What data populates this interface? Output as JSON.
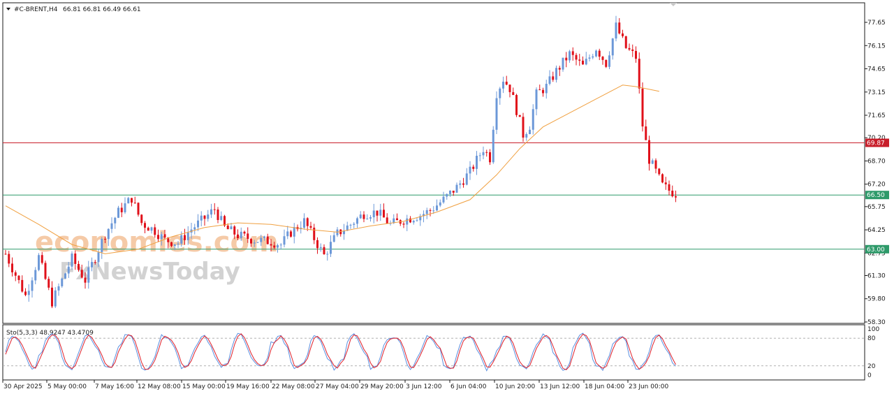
{
  "header": {
    "menu_icon": "triangle-down-icon",
    "title": "#C-BRENT,H4",
    "ohlc": "66.81 66.81 66.49 66.61"
  },
  "watermark": {
    "line1": "economies.com",
    "line2": "FxNewsToday"
  },
  "colors": {
    "bull": "#6c98d8",
    "bear": "#e0101a",
    "ma": "#f0a040",
    "resistance": "#c81e2a",
    "support": "#2e9a6a",
    "stoch_main": "#5a8fe0",
    "stoch_signal": "#e0202a"
  },
  "chart_data": [
    {
      "type": "candlestick",
      "symbol": "#C-BRENT",
      "timeframe": "H4",
      "y_ticks": [
        "77.65",
        "76.15",
        "74.65",
        "73.15",
        "71.65",
        "70.20",
        "68.70",
        "67.20",
        "65.75",
        "64.25",
        "62.75",
        "61.30",
        "59.80",
        "58.30"
      ],
      "ylim": [
        58.3,
        77.65
      ],
      "x_ticks": [
        "30 Apr 2025",
        "5 May 00:00",
        "7 May 16:00",
        "12 May 08:00",
        "15 May 00:00",
        "19 May 16:00",
        "22 May 08:00",
        "27 May 04:00",
        "29 May 20:00",
        "3 Jun 12:00",
        "6 Jun 04:00",
        "10 Jun 20:00",
        "13 Jun 12:00",
        "18 Jun 04:00",
        "23 Jun 00:00"
      ],
      "close_path": [
        [
          0,
          62.7
        ],
        [
          6,
          60.0
        ],
        [
          10,
          62.5
        ],
        [
          14,
          59.6
        ],
        [
          20,
          62.4
        ],
        [
          24,
          61.0
        ],
        [
          30,
          64.0
        ],
        [
          34,
          65.4
        ],
        [
          38,
          66.3
        ],
        [
          41,
          64.7
        ],
        [
          45,
          64.2
        ],
        [
          48,
          63.6
        ],
        [
          52,
          63.4
        ],
        [
          56,
          64.3
        ],
        [
          60,
          65.0
        ],
        [
          63,
          65.6
        ],
        [
          66,
          64.4
        ],
        [
          70,
          63.9
        ],
        [
          75,
          63.6
        ],
        [
          80,
          63.5
        ],
        [
          83,
          63.3
        ],
        [
          86,
          64.1
        ],
        [
          90,
          64.8
        ],
        [
          93,
          63.7
        ],
        [
          96,
          62.6
        ],
        [
          100,
          64.0
        ],
        [
          104,
          64.6
        ],
        [
          108,
          65.3
        ],
        [
          112,
          65.4
        ],
        [
          116,
          64.6
        ],
        [
          120,
          64.9
        ],
        [
          125,
          65.2
        ],
        [
          128,
          65.5
        ],
        [
          132,
          66.2
        ],
        [
          136,
          67.0
        ],
        [
          140,
          68.0
        ],
        [
          144,
          69.5
        ],
        [
          146,
          68.9
        ],
        [
          148,
          73.1
        ],
        [
          150,
          74.0
        ],
        [
          152,
          73.4
        ],
        [
          154,
          72.0
        ],
        [
          156,
          70.4
        ],
        [
          158,
          71.0
        ],
        [
          160,
          73.0
        ],
        [
          163,
          73.5
        ],
        [
          166,
          74.5
        ],
        [
          170,
          75.6
        ],
        [
          174,
          74.8
        ],
        [
          178,
          76.0
        ],
        [
          181,
          75.0
        ],
        [
          184,
          77.4
        ],
        [
          187,
          76.0
        ],
        [
          190,
          75.4
        ],
        [
          192,
          71.0
        ],
        [
          194,
          68.8
        ],
        [
          196,
          68.0
        ],
        [
          198,
          67.1
        ],
        [
          200,
          66.8
        ],
        [
          202,
          66.6
        ]
      ],
      "ma": [
        [
          0,
          65.8
        ],
        [
          10,
          64.6
        ],
        [
          20,
          63.3
        ],
        [
          30,
          62.7
        ],
        [
          40,
          63.0
        ],
        [
          50,
          63.8
        ],
        [
          60,
          64.4
        ],
        [
          70,
          64.7
        ],
        [
          80,
          64.6
        ],
        [
          90,
          64.3
        ],
        [
          100,
          64.1
        ],
        [
          110,
          64.5
        ],
        [
          120,
          64.8
        ],
        [
          130,
          65.4
        ],
        [
          140,
          66.2
        ],
        [
          148,
          67.8
        ],
        [
          155,
          69.5
        ],
        [
          162,
          70.9
        ],
        [
          170,
          71.8
        ],
        [
          178,
          72.7
        ],
        [
          186,
          73.6
        ],
        [
          190,
          73.5
        ],
        [
          197,
          73.2
        ]
      ],
      "levels": [
        {
          "label": "69.87",
          "value": 69.87,
          "color": "#c81e2a"
        },
        {
          "label": "66.50",
          "value": 66.5,
          "color": "#2e9a6a"
        },
        {
          "label": "63.00",
          "value": 63.0,
          "color": "#2e9a6a"
        }
      ]
    },
    {
      "type": "line",
      "indicator": "Stochastic",
      "label": "Sto(5,3,3) 48.9247 43.4709",
      "ylim": [
        0,
        100
      ],
      "y_ticks": [
        "100",
        "80",
        "20",
        "0"
      ],
      "levels": [
        80,
        20
      ]
    }
  ]
}
